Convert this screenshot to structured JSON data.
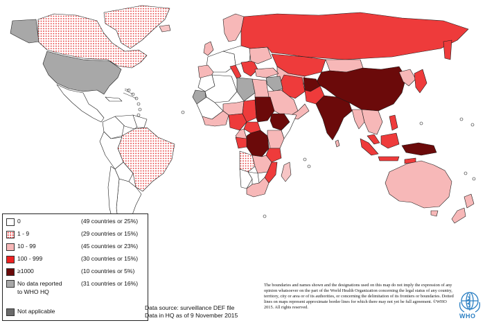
{
  "map": {
    "colors": {
      "zero": "#ffffff",
      "one_to_nine": "#f7c5c5",
      "ten_to_99": "#f7b8b8",
      "hundred_to_999": "#ee3b3b",
      "over_1000": "#6b0a0a",
      "no_data": "#a8a8a8",
      "not_applicable": "#6b6b6b",
      "border": "#1a1a1a"
    }
  },
  "legend": {
    "items": [
      {
        "label": "0",
        "count": "(49 countries or 25%)",
        "swatch": "zero"
      },
      {
        "label": "1 - 9",
        "count": "(29 countries or 15%)",
        "swatch": "one_to_nine"
      },
      {
        "label": "10 - 99",
        "count": "(45 countries or 23%)",
        "swatch": "ten_to_99"
      },
      {
        "label": "100 - 999",
        "count": "(30 countries or 15%)",
        "swatch": "hundred_to_999"
      },
      {
        "label": "≥1000",
        "count": "(10 countries or 5%)",
        "swatch": "over_1000"
      },
      {
        "label": "No data reported",
        "label2": "to WHO HQ",
        "count": "(31 countries or 16%)",
        "swatch": "no_data"
      },
      {
        "label": "Not applicable",
        "count": "",
        "swatch": "not_applicable"
      }
    ]
  },
  "source": {
    "line1": "Data source: surveillance DEF file",
    "line2": "Data in HQ as of 9 November 2015"
  },
  "disclaimer": "The boundaries and names shown and the designations used on this map do not imply the expression of any opinion whatsoever on the part of the World Health Organization concerning the legal status of any country, territory, city or area or of its authorities, or concerning the delimitation of its frontiers or boundaries. Dotted lines on maps represent approximate border lines for which there may not yet be full agreement. ©WHO 2015. All rights reserved.",
  "logo": {
    "text": "WHO"
  }
}
